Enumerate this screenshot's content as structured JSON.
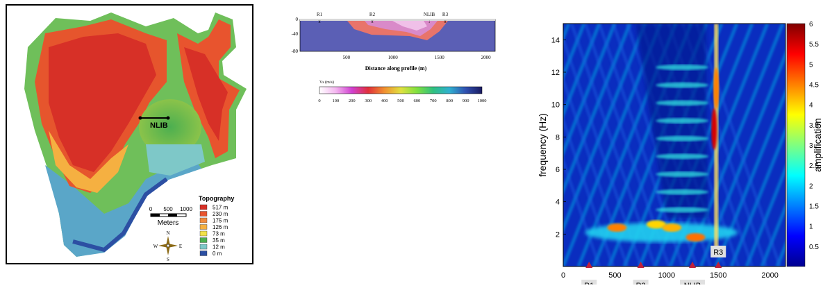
{
  "map": {
    "station_label": "NLIB",
    "scale_ticks": [
      "0",
      "500",
      "1000"
    ],
    "scale_unit": "Meters",
    "compass": {
      "n": "N",
      "s": "S",
      "e": "E",
      "w": "W"
    },
    "legend": {
      "title": "Topography",
      "items": [
        {
          "label": "517 m",
          "color": "#d73027"
        },
        {
          "label": "230 m",
          "color": "#e8542e"
        },
        {
          "label": "175 m",
          "color": "#f08a3c"
        },
        {
          "label": "126 m",
          "color": "#f5b041"
        },
        {
          "label": "73 m",
          "color": "#f2e14a"
        },
        {
          "label": "35 m",
          "color": "#4caf50"
        },
        {
          "label": "12 m",
          "color": "#7ec8c8"
        },
        {
          "label": "0 m",
          "color": "#2c4fa3"
        }
      ]
    }
  },
  "profile": {
    "station_labels": [
      "R1",
      "R2",
      "NLIB",
      "R3"
    ],
    "y_ticks": [
      "0",
      "-40",
      "-80"
    ],
    "x_ticks": [
      "500",
      "1000",
      "1500",
      "2000"
    ],
    "xlabel": "Distance along profile",
    "xunit": "(m)",
    "colorbar_title": "Vs (m/s)",
    "colorbar_ticks": [
      "0",
      "100",
      "200",
      "300",
      "400",
      "500",
      "600",
      "700",
      "800",
      "900",
      "1000"
    ]
  },
  "chart_data": {
    "type": "heatmap",
    "ylabel": "frequency (Hz)",
    "xlim": [
      0,
      2150
    ],
    "ylim": [
      0,
      15
    ],
    "x_ticks": [
      0,
      500,
      1000,
      1500,
      2000
    ],
    "y_ticks": [
      2,
      4,
      6,
      8,
      10,
      12,
      14
    ],
    "stations": [
      {
        "name": "R1",
        "x": 250
      },
      {
        "name": "R2",
        "x": 750
      },
      {
        "name": "NLIB",
        "x": 1250
      },
      {
        "name": "R3",
        "x": 1500
      }
    ],
    "hotspots": [
      {
        "x": 520,
        "f": 2.4,
        "a": 4.5
      },
      {
        "x": 900,
        "f": 2.6,
        "a": 4.0
      },
      {
        "x": 1050,
        "f": 2.4,
        "a": 4.2
      },
      {
        "x": 1280,
        "f": 1.8,
        "a": 4.6
      },
      {
        "x": 1460,
        "f": 8.5,
        "a": 5.5
      },
      {
        "x": 1480,
        "f": 11.0,
        "a": 4.5
      }
    ],
    "colorbar": {
      "label": "amplification",
      "ticks": [
        "0.5",
        "1",
        "1.5",
        "2",
        "2.5",
        "3",
        "3.5",
        "4",
        "4.5",
        "5",
        "5.5",
        "6"
      ],
      "range": [
        0,
        6
      ]
    }
  }
}
